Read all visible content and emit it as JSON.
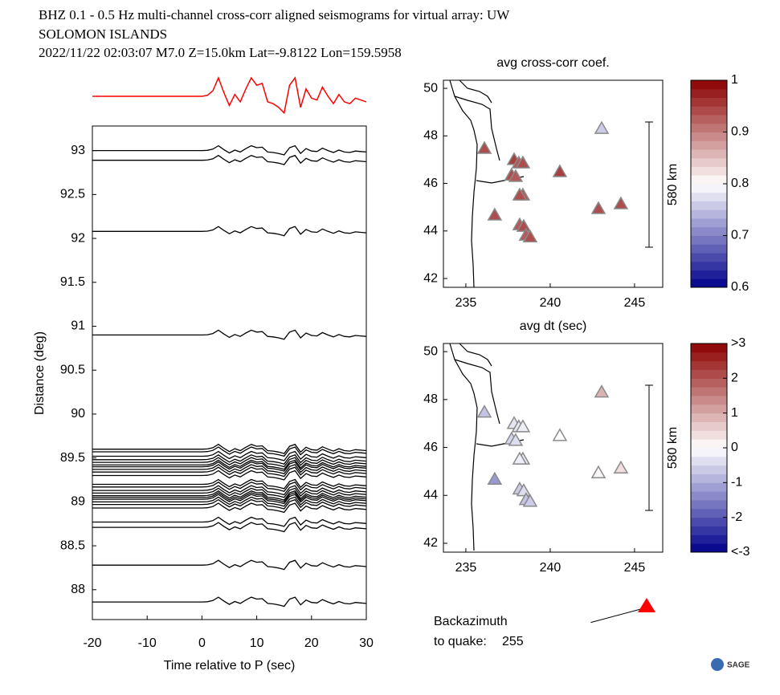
{
  "header": {
    "line1": "BHZ  0.1 - 0.5 Hz  multi-channel cross-corr aligned seismograms for virtual array: UW",
    "line2": "SOLOMON ISLANDS",
    "line3": "2022/11/22  02:03:07  M7.0  Z=15.0km Lat=-9.8122 Lon=159.5958"
  },
  "chart_data": [
    {
      "type": "line",
      "x_label": "Time relative to P (sec)",
      "y_label": "Distance (deg)",
      "x": [
        -20,
        -19,
        -18,
        -17,
        -16,
        -15,
        -14,
        -13,
        -12,
        -11,
        -10,
        -9,
        -8,
        -7,
        -6,
        -5,
        -4,
        -3,
        -2,
        -1,
        0,
        1,
        2,
        3,
        4,
        5,
        6,
        7,
        8,
        9,
        10,
        11,
        12,
        13,
        14,
        15,
        16,
        17,
        18,
        19,
        20,
        21,
        22,
        23,
        24,
        25,
        26,
        27,
        28,
        29,
        30
      ],
      "stack": {
        "color": "#ff0000",
        "values": [
          0,
          0,
          0,
          0,
          0,
          0,
          0,
          0,
          0,
          0,
          0,
          0,
          0,
          0,
          0,
          0,
          0,
          0,
          0,
          0,
          0,
          0.05,
          0.3,
          1.0,
          0.2,
          -0.5,
          0.1,
          -0.3,
          0.4,
          1.0,
          0.6,
          0.7,
          -0.3,
          -0.4,
          -0.6,
          -0.9,
          0.6,
          1.0,
          -0.6,
          0.4,
          -0.1,
          -0.2,
          0.5,
          0.0,
          -0.4,
          0.1,
          -0.3,
          -0.4,
          -0.1,
          -0.2,
          -0.3
        ]
      },
      "traces": {
        "color": "#000000",
        "distances": [
          93.0,
          92.89,
          92.08,
          90.9,
          89.6,
          89.57,
          89.52,
          89.48,
          89.45,
          89.42,
          89.4,
          89.37,
          89.34,
          89.3,
          89.2,
          89.17,
          89.13,
          89.1,
          89.07,
          89.05,
          89.03,
          89.0,
          88.97,
          88.93,
          88.77,
          88.71,
          88.28,
          87.86
        ]
      },
      "xlim": [
        -20,
        30
      ],
      "xticks": [
        -20,
        -10,
        0,
        10,
        20,
        30
      ],
      "ylim": [
        87.66,
        93.28
      ],
      "yticks": [
        88,
        88.5,
        89,
        89.5,
        90,
        90.5,
        91,
        91.5,
        92,
        92.5,
        93
      ]
    },
    {
      "type": "scatter",
      "title": "avg cross-corr coef.",
      "x": [
        236.1,
        243.05,
        237.86,
        238.14,
        238.38,
        237.71,
        237.95,
        240.57,
        238.38,
        238.19,
        236.71,
        242.86,
        244.19,
        238.19,
        238.43,
        238.57,
        238.81
      ],
      "y": [
        47.47,
        48.31,
        47.0,
        46.86,
        46.86,
        46.35,
        46.29,
        46.49,
        45.51,
        45.51,
        44.67,
        44.94,
        45.14,
        44.26,
        44.19,
        43.82,
        43.75
      ],
      "values": [
        0.94,
        0.76,
        0.95,
        0.93,
        0.94,
        0.94,
        0.93,
        0.95,
        0.93,
        0.94,
        0.94,
        0.94,
        0.94,
        0.93,
        0.94,
        0.93,
        0.94
      ],
      "xlim": [
        233.67,
        246.67
      ],
      "xticks": [
        235,
        240,
        245
      ],
      "ylim": [
        41.63,
        50.34
      ],
      "yticks": [
        42,
        44,
        46,
        48,
        50
      ],
      "scale_label": "580 km",
      "colorbar": {
        "lim": [
          0.6,
          1
        ],
        "ticks": [
          0.6,
          0.7,
          0.8,
          0.9,
          1
        ],
        "colors": [
          "#00008b",
          "#ffffff",
          "#8b0000"
        ]
      }
    },
    {
      "type": "scatter",
      "title": "avg dt (sec)",
      "x": [
        236.1,
        243.05,
        237.86,
        238.14,
        238.38,
        237.71,
        237.95,
        240.57,
        238.38,
        238.19,
        236.71,
        242.86,
        244.19,
        238.19,
        238.43,
        238.57,
        238.81
      ],
      "y": [
        47.47,
        48.31,
        47.0,
        46.86,
        46.86,
        46.35,
        46.29,
        46.49,
        45.51,
        45.51,
        44.67,
        44.94,
        45.14,
        44.26,
        44.19,
        43.82,
        43.75
      ],
      "values": [
        -0.7,
        0.9,
        -0.3,
        -0.3,
        -0.2,
        -0.5,
        -0.4,
        0.0,
        -0.3,
        -0.2,
        -1.2,
        0.1,
        0.4,
        -0.6,
        -0.4,
        -0.7,
        -0.6
      ],
      "xlim": [
        233.67,
        246.67
      ],
      "xticks": [
        235,
        240,
        245
      ],
      "ylim": [
        41.63,
        50.34
      ],
      "yticks": [
        42,
        44,
        46,
        48,
        50
      ],
      "scale_label": "580 km",
      "colorbar": {
        "lim": [
          -3,
          3
        ],
        "ticks": [
          {
            "value": -3,
            "label": "<-3"
          },
          -2,
          -1,
          0,
          1,
          2,
          {
            "value": 3,
            "label": ">3"
          }
        ],
        "colors": [
          "#00008b",
          "#ffffff",
          "#8b0000"
        ]
      }
    }
  ],
  "backazimuth": {
    "label": "Backazimuth",
    "prefix": "to quake:",
    "value": 255,
    "color": "#ff0000"
  },
  "logo": {
    "text": "SAGE"
  }
}
